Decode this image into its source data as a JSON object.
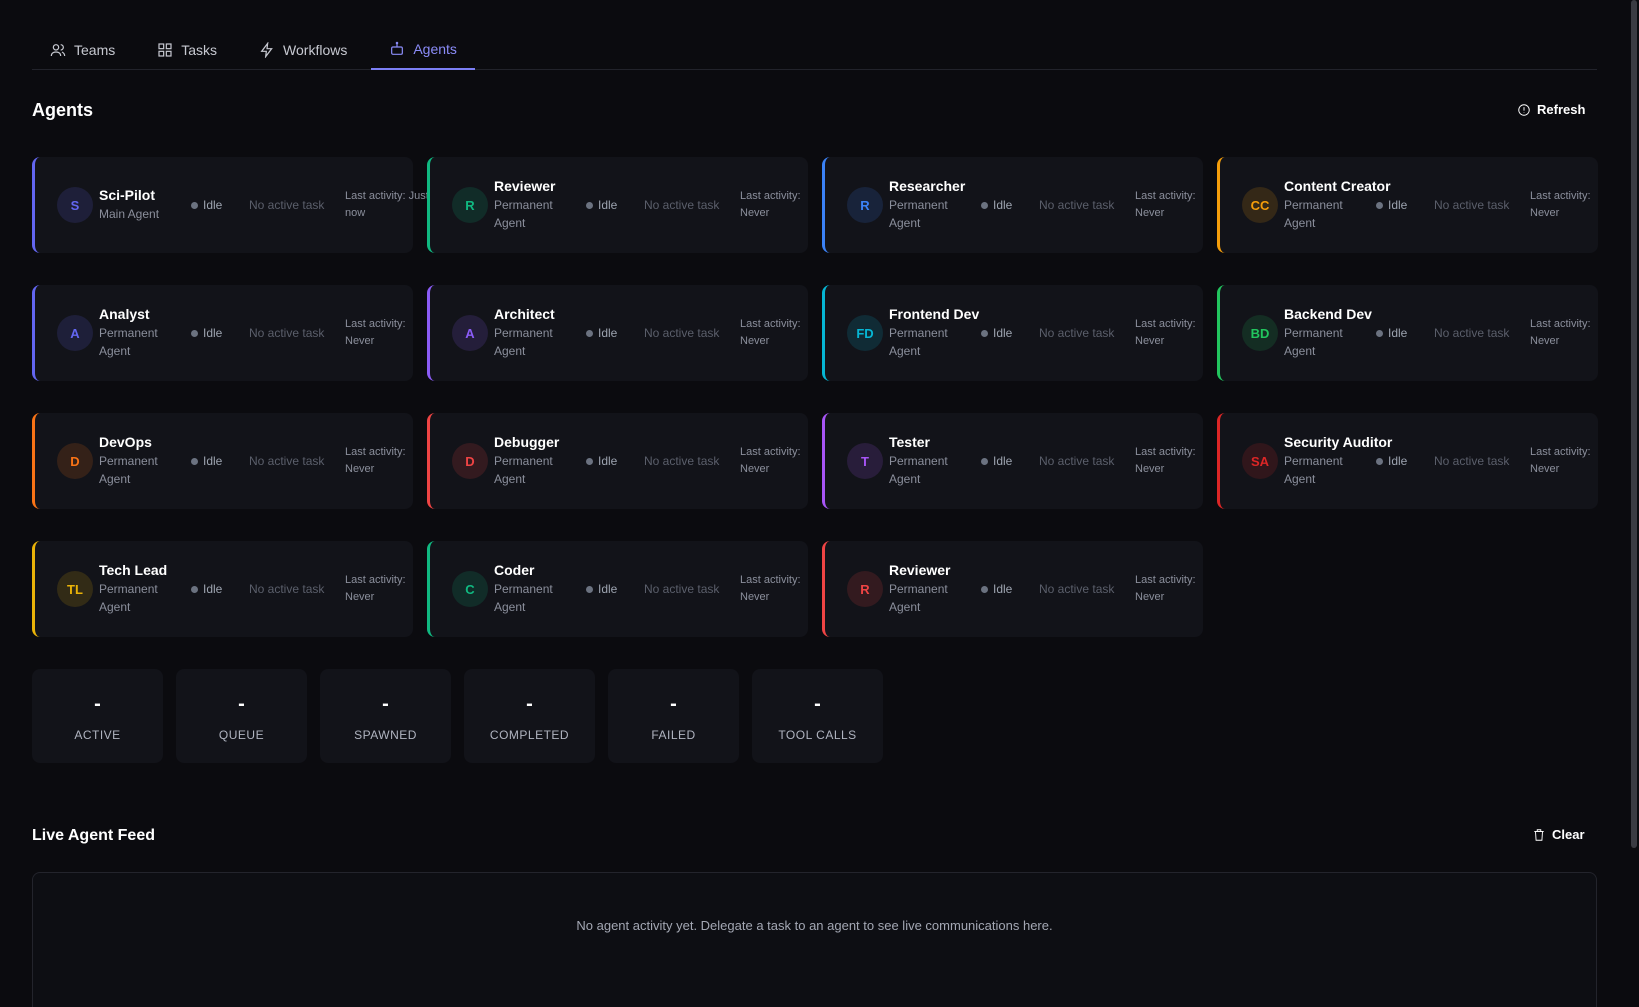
{
  "tabs": [
    "Teams",
    "Tasks",
    "Workflows",
    "Agents"
  ],
  "active_tab": 3,
  "header": {
    "title": "Agents",
    "refresh": "Refresh"
  },
  "agents": [
    {
      "name": "Sci-Pilot",
      "role": "Main Agent",
      "initials": "S",
      "status": "Idle",
      "task": "No active task",
      "last_activity": "Last activity: Just now",
      "color": "#6366f1"
    },
    {
      "name": "Reviewer",
      "role": "Permanent Agent",
      "initials": "R",
      "status": "Idle",
      "task": "No active task",
      "last_activity": "Last activity: Never",
      "color": "#10b981"
    },
    {
      "name": "Researcher",
      "role": "Permanent Agent",
      "initials": "R",
      "status": "Idle",
      "task": "No active task",
      "last_activity": "Last activity: Never",
      "color": "#3b82f6"
    },
    {
      "name": "Content Creator",
      "role": "Permanent Agent",
      "initials": "CC",
      "status": "Idle",
      "task": "No active task",
      "last_activity": "Last activity: Never",
      "color": "#f59e0b"
    },
    {
      "name": "Analyst",
      "role": "Permanent Agent",
      "initials": "A",
      "status": "Idle",
      "task": "No active task",
      "last_activity": "Last activity: Never",
      "color": "#6366f1"
    },
    {
      "name": "Architect",
      "role": "Permanent Agent",
      "initials": "A",
      "status": "Idle",
      "task": "No active task",
      "last_activity": "Last activity: Never",
      "color": "#8b5cf6"
    },
    {
      "name": "Frontend Dev",
      "role": "Permanent Agent",
      "initials": "FD",
      "status": "Idle",
      "task": "No active task",
      "last_activity": "Last activity: Never",
      "color": "#06b6d4"
    },
    {
      "name": "Backend Dev",
      "role": "Permanent Agent",
      "initials": "BD",
      "status": "Idle",
      "task": "No active task",
      "last_activity": "Last activity: Never",
      "color": "#22c55e"
    },
    {
      "name": "DevOps",
      "role": "Permanent Agent",
      "initials": "D",
      "status": "Idle",
      "task": "No active task",
      "last_activity": "Last activity: Never",
      "color": "#f97316"
    },
    {
      "name": "Debugger",
      "role": "Permanent Agent",
      "initials": "D",
      "status": "Idle",
      "task": "No active task",
      "last_activity": "Last activity: Never",
      "color": "#ef4444"
    },
    {
      "name": "Tester",
      "role": "Permanent Agent",
      "initials": "T",
      "status": "Idle",
      "task": "No active task",
      "last_activity": "Last activity: Never",
      "color": "#a855f7"
    },
    {
      "name": "Security Auditor",
      "role": "Permanent Agent",
      "initials": "SA",
      "status": "Idle",
      "task": "No active task",
      "last_activity": "Last activity: Never",
      "color": "#dc2626"
    },
    {
      "name": "Tech Lead",
      "role": "Permanent Agent",
      "initials": "TL",
      "status": "Idle",
      "task": "No active task",
      "last_activity": "Last activity: Never",
      "color": "#eab308"
    },
    {
      "name": "Coder",
      "role": "Permanent Agent",
      "initials": "C",
      "status": "Idle",
      "task": "No active task",
      "last_activity": "Last activity: Never",
      "color": "#10b981"
    },
    {
      "name": "Reviewer",
      "role": "Permanent Agent",
      "initials": "R",
      "status": "Idle",
      "task": "No active task",
      "last_activity": "Last activity: Never",
      "color": "#ef4444"
    }
  ],
  "stats": [
    {
      "value": "-",
      "label": "ACTIVE"
    },
    {
      "value": "-",
      "label": "QUEUE"
    },
    {
      "value": "-",
      "label": "SPAWNED"
    },
    {
      "value": "-",
      "label": "COMPLETED"
    },
    {
      "value": "-",
      "label": "FAILED"
    },
    {
      "value": "-",
      "label": "TOOL CALLS"
    }
  ],
  "feed": {
    "title": "Live Agent Feed",
    "clear": "Clear",
    "empty": "No agent activity yet. Delegate a task to an agent to see live communications here."
  }
}
